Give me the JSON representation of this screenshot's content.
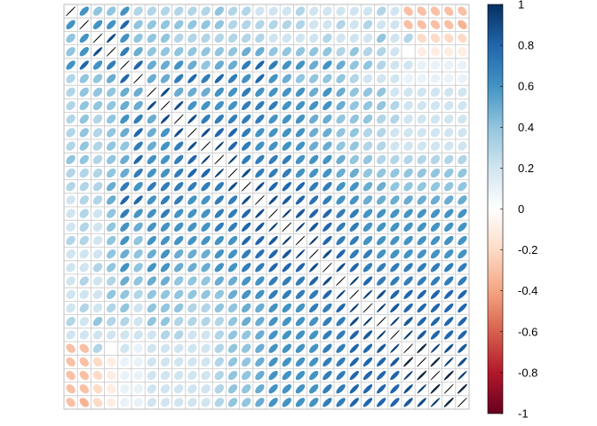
{
  "chart_data": {
    "type": "heatmap",
    "subtype": "correlation-matrix-ellipse",
    "title": "",
    "xlabel": "",
    "ylabel": "",
    "grid": true,
    "legend_placement": "right",
    "color_scale": {
      "min": -1,
      "max": 1,
      "low_color": "#67001F",
      "mid_color": "#FFFFFF",
      "high_color": "#053061",
      "tick_labels": [
        "1",
        "0.8",
        "0.6",
        "0.4",
        "0.2",
        "0",
        "-0.2",
        "-0.4",
        "-0.6",
        "-0.8",
        "-1"
      ]
    },
    "n_variables": 30,
    "correlation_matrix": [
      [
        1.0,
        0.6,
        0.4,
        0.4,
        0.6,
        0.3,
        0.3,
        0.3,
        0.3,
        0.3,
        0.3,
        0.4,
        0.3,
        0.3,
        0.2,
        0.2,
        0.2,
        0.3,
        0.2,
        0.2,
        0.2,
        0.2,
        0.2,
        0.3,
        0.2,
        -0.3,
        -0.3,
        -0.3,
        -0.3,
        -0.3
      ],
      [
        0.6,
        1.0,
        0.6,
        0.6,
        0.8,
        0.4,
        0.4,
        0.4,
        0.4,
        0.4,
        0.4,
        0.4,
        0.3,
        0.3,
        0.3,
        0.3,
        0.3,
        0.3,
        0.2,
        0.2,
        0.3,
        0.2,
        0.3,
        0.2,
        0.2,
        -0.3,
        -0.3,
        -0.3,
        -0.3,
        -0.35
      ],
      [
        0.4,
        0.6,
        1.0,
        0.9,
        0.6,
        0.4,
        0.4,
        0.4,
        0.3,
        0.3,
        0.3,
        0.3,
        0.3,
        0.3,
        0.3,
        0.2,
        0.2,
        0.2,
        0.2,
        0.3,
        0.2,
        0.2,
        0.2,
        0.4,
        0.2,
        0.3,
        -0.2,
        -0.2,
        -0.2,
        -0.2
      ],
      [
        0.4,
        0.6,
        0.9,
        1.0,
        0.7,
        0.5,
        0.4,
        0.4,
        0.4,
        0.4,
        0.4,
        0.4,
        0.4,
        0.5,
        0.5,
        0.4,
        0.4,
        0.4,
        0.4,
        0.4,
        0.3,
        0.4,
        0.3,
        0.3,
        0.2,
        0.0,
        -0.1,
        -0.1,
        -0.1,
        -0.1
      ],
      [
        0.6,
        0.8,
        0.6,
        0.7,
        1.0,
        0.8,
        0.5,
        0.5,
        0.6,
        0.5,
        0.4,
        0.5,
        0.5,
        0.7,
        0.8,
        0.7,
        0.6,
        0.6,
        0.5,
        0.6,
        0.5,
        0.4,
        0.4,
        0.3,
        0.2,
        0.2,
        0.1,
        0.1,
        0.1,
        0.1
      ],
      [
        0.3,
        0.4,
        0.4,
        0.5,
        0.8,
        1.0,
        0.5,
        0.5,
        0.7,
        0.8,
        0.7,
        0.8,
        0.7,
        0.6,
        0.8,
        0.6,
        0.5,
        0.4,
        0.4,
        0.4,
        0.4,
        0.3,
        0.2,
        0.2,
        0.2,
        0.1,
        0.1,
        0.1,
        0.1,
        0.1
      ],
      [
        0.3,
        0.4,
        0.4,
        0.4,
        0.5,
        0.5,
        1.0,
        0.9,
        0.5,
        0.5,
        0.5,
        0.6,
        0.6,
        0.7,
        0.6,
        0.6,
        0.6,
        0.6,
        0.5,
        0.6,
        0.5,
        0.4,
        0.4,
        0.4,
        0.2,
        0.2,
        0.2,
        0.2,
        0.2,
        0.2
      ],
      [
        0.3,
        0.4,
        0.4,
        0.4,
        0.5,
        0.5,
        0.9,
        1.0,
        0.9,
        0.6,
        0.6,
        0.6,
        0.6,
        0.7,
        0.7,
        0.7,
        0.6,
        0.6,
        0.6,
        0.6,
        0.5,
        0.4,
        0.4,
        0.4,
        0.3,
        0.2,
        0.2,
        0.2,
        0.2,
        0.2
      ],
      [
        0.3,
        0.4,
        0.3,
        0.4,
        0.6,
        0.7,
        0.5,
        0.9,
        1.0,
        0.9,
        0.7,
        0.7,
        0.7,
        0.7,
        0.7,
        0.6,
        0.6,
        0.6,
        0.5,
        0.5,
        0.4,
        0.4,
        0.4,
        0.3,
        0.3,
        0.2,
        0.2,
        0.2,
        0.2,
        0.2
      ],
      [
        0.3,
        0.4,
        0.3,
        0.4,
        0.5,
        0.8,
        0.5,
        0.6,
        0.9,
        1.0,
        0.9,
        0.8,
        0.8,
        0.7,
        0.6,
        0.6,
        0.6,
        0.6,
        0.5,
        0.5,
        0.4,
        0.4,
        0.3,
        0.3,
        0.2,
        0.2,
        0.2,
        0.2,
        0.2,
        0.2
      ],
      [
        0.3,
        0.4,
        0.3,
        0.4,
        0.4,
        0.7,
        0.5,
        0.6,
        0.7,
        0.9,
        1.0,
        0.95,
        0.8,
        0.7,
        0.6,
        0.6,
        0.6,
        0.6,
        0.5,
        0.5,
        0.4,
        0.4,
        0.3,
        0.3,
        0.2,
        0.2,
        0.2,
        0.2,
        0.2,
        0.2
      ],
      [
        0.4,
        0.4,
        0.3,
        0.4,
        0.5,
        0.8,
        0.6,
        0.6,
        0.7,
        0.8,
        0.95,
        1.0,
        0.95,
        0.7,
        0.7,
        0.7,
        0.7,
        0.6,
        0.6,
        0.6,
        0.5,
        0.4,
        0.4,
        0.3,
        0.3,
        0.3,
        0.3,
        0.3,
        0.3,
        0.3
      ],
      [
        0.3,
        0.3,
        0.3,
        0.4,
        0.5,
        0.7,
        0.6,
        0.6,
        0.7,
        0.8,
        0.8,
        0.95,
        1.0,
        0.9,
        0.7,
        0.7,
        0.7,
        0.6,
        0.6,
        0.6,
        0.5,
        0.5,
        0.4,
        0.4,
        0.4,
        0.4,
        0.4,
        0.4,
        0.4,
        0.4
      ],
      [
        0.3,
        0.3,
        0.3,
        0.5,
        0.7,
        0.6,
        0.7,
        0.7,
        0.7,
        0.7,
        0.7,
        0.7,
        0.9,
        1.0,
        0.9,
        0.8,
        0.8,
        0.8,
        0.7,
        0.7,
        0.6,
        0.6,
        0.5,
        0.5,
        0.4,
        0.4,
        0.4,
        0.4,
        0.4,
        0.4
      ],
      [
        0.2,
        0.3,
        0.3,
        0.5,
        0.8,
        0.8,
        0.6,
        0.7,
        0.7,
        0.6,
        0.6,
        0.7,
        0.7,
        0.9,
        1.0,
        0.9,
        0.85,
        0.8,
        0.75,
        0.7,
        0.6,
        0.6,
        0.5,
        0.5,
        0.5,
        0.5,
        0.5,
        0.5,
        0.5,
        0.5
      ],
      [
        0.2,
        0.3,
        0.2,
        0.4,
        0.7,
        0.6,
        0.6,
        0.7,
        0.6,
        0.6,
        0.6,
        0.7,
        0.7,
        0.8,
        0.9,
        1.0,
        0.95,
        0.85,
        0.8,
        0.8,
        0.7,
        0.7,
        0.6,
        0.6,
        0.6,
        0.6,
        0.6,
        0.6,
        0.6,
        0.6
      ],
      [
        0.2,
        0.3,
        0.2,
        0.4,
        0.6,
        0.5,
        0.6,
        0.6,
        0.6,
        0.6,
        0.6,
        0.7,
        0.7,
        0.8,
        0.85,
        0.95,
        1.0,
        0.95,
        0.85,
        0.8,
        0.7,
        0.7,
        0.6,
        0.6,
        0.6,
        0.6,
        0.6,
        0.6,
        0.6,
        0.6
      ],
      [
        0.3,
        0.3,
        0.2,
        0.4,
        0.6,
        0.4,
        0.6,
        0.6,
        0.6,
        0.6,
        0.6,
        0.6,
        0.6,
        0.8,
        0.8,
        0.85,
        0.95,
        1.0,
        0.95,
        0.8,
        0.7,
        0.7,
        0.6,
        0.6,
        0.6,
        0.6,
        0.6,
        0.6,
        0.6,
        0.6
      ],
      [
        0.2,
        0.2,
        0.2,
        0.4,
        0.5,
        0.4,
        0.5,
        0.6,
        0.5,
        0.5,
        0.5,
        0.6,
        0.6,
        0.7,
        0.75,
        0.8,
        0.85,
        0.95,
        1.0,
        0.9,
        0.8,
        0.7,
        0.7,
        0.6,
        0.6,
        0.6,
        0.6,
        0.6,
        0.6,
        0.6
      ],
      [
        0.2,
        0.2,
        0.3,
        0.4,
        0.6,
        0.4,
        0.6,
        0.6,
        0.5,
        0.5,
        0.5,
        0.6,
        0.6,
        0.7,
        0.7,
        0.8,
        0.8,
        0.8,
        0.9,
        1.0,
        0.9,
        0.8,
        0.7,
        0.7,
        0.7,
        0.7,
        0.7,
        0.7,
        0.7,
        0.7
      ],
      [
        0.2,
        0.3,
        0.2,
        0.3,
        0.5,
        0.4,
        0.5,
        0.5,
        0.4,
        0.4,
        0.4,
        0.5,
        0.5,
        0.6,
        0.6,
        0.7,
        0.7,
        0.7,
        0.8,
        0.9,
        1.0,
        0.95,
        0.8,
        0.7,
        0.7,
        0.7,
        0.7,
        0.7,
        0.7,
        0.7
      ],
      [
        0.2,
        0.2,
        0.2,
        0.4,
        0.4,
        0.3,
        0.4,
        0.4,
        0.4,
        0.4,
        0.4,
        0.4,
        0.5,
        0.6,
        0.6,
        0.7,
        0.7,
        0.7,
        0.7,
        0.8,
        0.95,
        1.0,
        0.95,
        0.9,
        0.8,
        0.8,
        0.8,
        0.8,
        0.8,
        0.8
      ],
      [
        0.2,
        0.3,
        0.2,
        0.3,
        0.4,
        0.2,
        0.4,
        0.4,
        0.4,
        0.3,
        0.3,
        0.4,
        0.4,
        0.5,
        0.5,
        0.6,
        0.6,
        0.6,
        0.7,
        0.7,
        0.8,
        0.95,
        1.0,
        0.95,
        0.85,
        0.8,
        0.8,
        0.8,
        0.8,
        0.8
      ],
      [
        0.3,
        0.2,
        0.4,
        0.3,
        0.3,
        0.2,
        0.4,
        0.4,
        0.3,
        0.3,
        0.3,
        0.3,
        0.4,
        0.5,
        0.5,
        0.6,
        0.6,
        0.6,
        0.6,
        0.7,
        0.7,
        0.9,
        0.95,
        1.0,
        0.95,
        0.85,
        0.8,
        0.8,
        0.8,
        0.8
      ],
      [
        0.2,
        0.2,
        0.2,
        0.2,
        0.2,
        0.2,
        0.2,
        0.3,
        0.3,
        0.2,
        0.2,
        0.3,
        0.4,
        0.4,
        0.5,
        0.6,
        0.6,
        0.6,
        0.6,
        0.7,
        0.7,
        0.8,
        0.85,
        0.95,
        1.0,
        0.95,
        0.85,
        0.8,
        0.8,
        0.8
      ],
      [
        -0.3,
        -0.3,
        0.3,
        0.0,
        0.2,
        0.1,
        0.2,
        0.2,
        0.2,
        0.2,
        0.2,
        0.3,
        0.4,
        0.4,
        0.5,
        0.6,
        0.6,
        0.6,
        0.6,
        0.7,
        0.7,
        0.8,
        0.8,
        0.85,
        0.95,
        1.0,
        0.97,
        0.95,
        0.9,
        0.85
      ],
      [
        -0.3,
        -0.3,
        -0.2,
        -0.1,
        0.1,
        0.1,
        0.2,
        0.2,
        0.2,
        0.2,
        0.2,
        0.3,
        0.4,
        0.4,
        0.5,
        0.6,
        0.6,
        0.6,
        0.6,
        0.7,
        0.7,
        0.8,
        0.8,
        0.8,
        0.85,
        0.97,
        1.0,
        0.97,
        0.95,
        0.9
      ],
      [
        -0.3,
        -0.3,
        -0.2,
        -0.1,
        0.1,
        0.1,
        0.2,
        0.2,
        0.2,
        0.2,
        0.2,
        0.3,
        0.4,
        0.4,
        0.5,
        0.6,
        0.6,
        0.6,
        0.6,
        0.7,
        0.7,
        0.8,
        0.8,
        0.8,
        0.8,
        0.95,
        0.97,
        1.0,
        0.97,
        0.95
      ],
      [
        -0.3,
        -0.3,
        -0.2,
        -0.1,
        0.1,
        0.1,
        0.2,
        0.2,
        0.2,
        0.2,
        0.2,
        0.3,
        0.4,
        0.4,
        0.5,
        0.6,
        0.6,
        0.6,
        0.6,
        0.7,
        0.7,
        0.8,
        0.8,
        0.8,
        0.8,
        0.9,
        0.95,
        0.97,
        1.0,
        0.97
      ],
      [
        -0.3,
        -0.35,
        -0.2,
        -0.1,
        0.1,
        0.1,
        0.2,
        0.2,
        0.2,
        0.2,
        0.2,
        0.3,
        0.4,
        0.4,
        0.5,
        0.6,
        0.6,
        0.6,
        0.6,
        0.7,
        0.7,
        0.8,
        0.8,
        0.8,
        0.8,
        0.85,
        0.9,
        0.95,
        0.97,
        1.0
      ]
    ]
  }
}
